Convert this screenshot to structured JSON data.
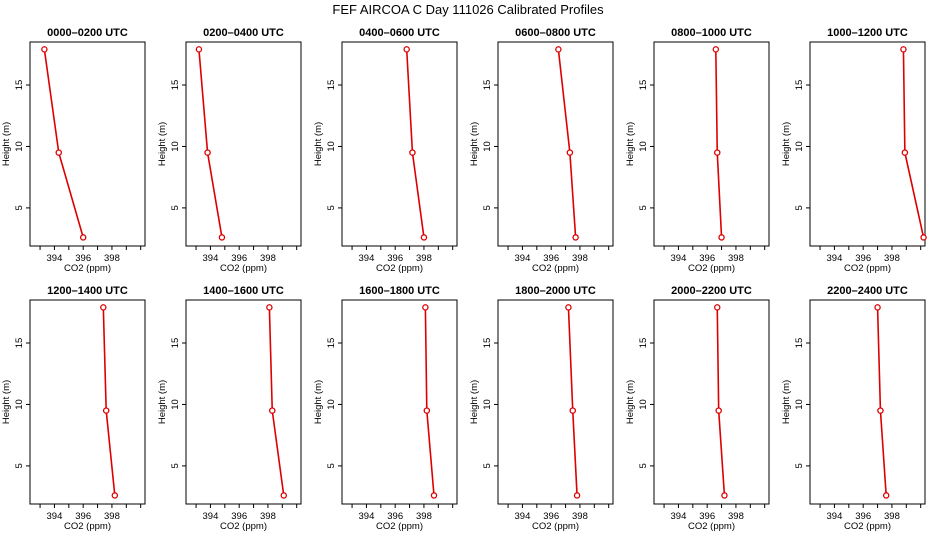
{
  "figure": {
    "title": "FEF  AIRCOA C  Day 111026  Calibrated Profiles"
  },
  "chart_data": [
    {
      "type": "line",
      "title": "0000–0200 UTC",
      "xlabel": "CO2 (ppm)",
      "ylabel": "Height (m)",
      "xlim": [
        392.3,
        400.3
      ],
      "ylim": [
        1.9,
        18.5
      ],
      "xticks": [
        394,
        396,
        398
      ],
      "yticks": [
        5,
        10,
        15
      ],
      "grid": false,
      "series": [
        {
          "x": [
            396.0,
            394.3,
            393.3
          ],
          "y": [
            2.6,
            9.5,
            17.9
          ],
          "color": "#dd0000"
        }
      ]
    },
    {
      "type": "line",
      "title": "0200–0400 UTC",
      "xlabel": "CO2 (ppm)",
      "ylabel": "Height (m)",
      "xlim": [
        392.3,
        400.3
      ],
      "ylim": [
        1.9,
        18.5
      ],
      "xticks": [
        394,
        396,
        398
      ],
      "yticks": [
        5,
        10,
        15
      ],
      "grid": false,
      "series": [
        {
          "x": [
            394.8,
            393.8,
            393.2
          ],
          "y": [
            2.6,
            9.5,
            17.9
          ],
          "color": "#dd0000"
        }
      ]
    },
    {
      "type": "line",
      "title": "0400–0600 UTC",
      "xlabel": "CO2 (ppm)",
      "ylabel": "Height (m)",
      "xlim": [
        392.3,
        400.3
      ],
      "ylim": [
        1.9,
        18.5
      ],
      "xticks": [
        394,
        396,
        398
      ],
      "yticks": [
        5,
        10,
        15
      ],
      "grid": false,
      "series": [
        {
          "x": [
            398.0,
            397.2,
            396.8
          ],
          "y": [
            2.6,
            9.5,
            17.9
          ],
          "color": "#dd0000"
        }
      ]
    },
    {
      "type": "line",
      "title": "0600–0800 UTC",
      "xlabel": "CO2 (ppm)",
      "ylabel": "Height (m)",
      "xlim": [
        392.3,
        400.3
      ],
      "ylim": [
        1.9,
        18.5
      ],
      "xticks": [
        394,
        396,
        398
      ],
      "yticks": [
        5,
        10,
        15
      ],
      "grid": false,
      "series": [
        {
          "x": [
            397.7,
            397.3,
            396.5
          ],
          "y": [
            2.6,
            9.5,
            17.9
          ],
          "color": "#dd0000"
        }
      ]
    },
    {
      "type": "line",
      "title": "0800–1000 UTC",
      "xlabel": "CO2 (ppm)",
      "ylabel": "Height (m)",
      "xlim": [
        392.3,
        400.3
      ],
      "ylim": [
        1.9,
        18.5
      ],
      "xticks": [
        394,
        396,
        398
      ],
      "yticks": [
        5,
        10,
        15
      ],
      "grid": false,
      "series": [
        {
          "x": [
            397.0,
            396.7,
            396.6
          ],
          "y": [
            2.6,
            9.5,
            17.9
          ],
          "color": "#dd0000"
        }
      ]
    },
    {
      "type": "line",
      "title": "1000–1200 UTC",
      "xlabel": "CO2 (ppm)",
      "ylabel": "Height (m)",
      "xlim": [
        392.3,
        400.3
      ],
      "ylim": [
        1.9,
        18.5
      ],
      "xticks": [
        394,
        396,
        398
      ],
      "yticks": [
        5,
        10,
        15
      ],
      "grid": false,
      "series": [
        {
          "x": [
            400.2,
            398.9,
            398.8
          ],
          "y": [
            2.6,
            9.5,
            17.9
          ],
          "color": "#dd0000"
        }
      ]
    },
    {
      "type": "line",
      "title": "1200–1400 UTC",
      "xlabel": "CO2 (ppm)",
      "ylabel": "Height (m)",
      "xlim": [
        392.3,
        400.3
      ],
      "ylim": [
        1.9,
        18.5
      ],
      "xticks": [
        394,
        396,
        398
      ],
      "yticks": [
        5,
        10,
        15
      ],
      "grid": false,
      "series": [
        {
          "x": [
            398.2,
            397.6,
            397.4
          ],
          "y": [
            2.6,
            9.5,
            17.9
          ],
          "color": "#dd0000"
        }
      ]
    },
    {
      "type": "line",
      "title": "1400–1600 UTC",
      "xlabel": "CO2 (ppm)",
      "ylabel": "Height (m)",
      "xlim": [
        392.3,
        400.3
      ],
      "ylim": [
        1.9,
        18.5
      ],
      "xticks": [
        394,
        396,
        398
      ],
      "yticks": [
        5,
        10,
        15
      ],
      "grid": false,
      "series": [
        {
          "x": [
            399.1,
            398.3,
            398.1
          ],
          "y": [
            2.6,
            9.5,
            17.9
          ],
          "color": "#dd0000"
        }
      ]
    },
    {
      "type": "line",
      "title": "1600–1800 UTC",
      "xlabel": "CO2 (ppm)",
      "ylabel": "Height (m)",
      "xlim": [
        392.3,
        400.3
      ],
      "ylim": [
        1.9,
        18.5
      ],
      "xticks": [
        394,
        396,
        398
      ],
      "yticks": [
        5,
        10,
        15
      ],
      "grid": false,
      "series": [
        {
          "x": [
            398.7,
            398.2,
            398.1
          ],
          "y": [
            2.6,
            9.5,
            17.9
          ],
          "color": "#dd0000"
        }
      ]
    },
    {
      "type": "line",
      "title": "1800–2000 UTC",
      "xlabel": "CO2 (ppm)",
      "ylabel": "Height (m)",
      "xlim": [
        392.3,
        400.3
      ],
      "ylim": [
        1.9,
        18.5
      ],
      "xticks": [
        394,
        396,
        398
      ],
      "yticks": [
        5,
        10,
        15
      ],
      "grid": false,
      "series": [
        {
          "x": [
            397.8,
            397.5,
            397.2
          ],
          "y": [
            2.6,
            9.5,
            17.9
          ],
          "color": "#dd0000"
        }
      ]
    },
    {
      "type": "line",
      "title": "2000–2200 UTC",
      "xlabel": "CO2 (ppm)",
      "ylabel": "Height (m)",
      "xlim": [
        392.3,
        400.3
      ],
      "ylim": [
        1.9,
        18.5
      ],
      "xticks": [
        394,
        396,
        398
      ],
      "yticks": [
        5,
        10,
        15
      ],
      "grid": false,
      "series": [
        {
          "x": [
            397.2,
            396.8,
            396.7
          ],
          "y": [
            2.6,
            9.5,
            17.9
          ],
          "color": "#dd0000"
        }
      ]
    },
    {
      "type": "line",
      "title": "2200–2400 UTC",
      "xlabel": "CO2 (ppm)",
      "ylabel": "Height (m)",
      "xlim": [
        392.3,
        400.3
      ],
      "ylim": [
        1.9,
        18.5
      ],
      "xticks": [
        394,
        396,
        398
      ],
      "yticks": [
        5,
        10,
        15
      ],
      "grid": false,
      "series": [
        {
          "x": [
            397.6,
            397.2,
            397.0
          ],
          "y": [
            2.6,
            9.5,
            17.9
          ],
          "color": "#dd0000"
        }
      ]
    }
  ]
}
